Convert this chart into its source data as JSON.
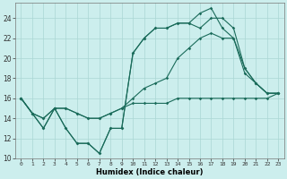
{
  "xlabel": "Humidex (Indice chaleur)",
  "bg_color": "#cceeed",
  "grid_color": "#aad6d4",
  "line_color": "#1a6b5a",
  "xlim": [
    -0.5,
    23.5
  ],
  "ylim": [
    10,
    25.5
  ],
  "yticks": [
    10,
    12,
    14,
    16,
    18,
    20,
    22,
    24
  ],
  "xticks": [
    0,
    1,
    2,
    3,
    4,
    5,
    6,
    7,
    8,
    9,
    10,
    11,
    12,
    13,
    14,
    15,
    16,
    17,
    18,
    19,
    20,
    21,
    22,
    23
  ],
  "series": [
    {
      "x": [
        0,
        1,
        2,
        3,
        4,
        5,
        6,
        7,
        8,
        9,
        10,
        11,
        12,
        13,
        14,
        15,
        16,
        17,
        18,
        19,
        20,
        21,
        22,
        23
      ],
      "y": [
        16,
        14.5,
        13,
        15,
        13,
        11.5,
        11.5,
        10.5,
        13,
        13,
        20.5,
        22,
        23,
        23,
        23.5,
        23.5,
        24.5,
        25,
        23,
        22,
        19,
        17.5,
        16.5,
        16.5
      ]
    },
    {
      "x": [
        0,
        1,
        2,
        3,
        4,
        5,
        6,
        7,
        8,
        9,
        10,
        11,
        12,
        13,
        14,
        15,
        16,
        17,
        18,
        19,
        20,
        21,
        22,
        23
      ],
      "y": [
        16,
        14.5,
        13,
        15,
        13,
        11.5,
        11.5,
        10.5,
        13,
        13,
        20.5,
        22,
        23,
        23,
        23.5,
        23.5,
        23,
        24,
        24,
        23,
        19,
        17.5,
        16.5,
        16.5
      ]
    },
    {
      "x": [
        0,
        1,
        2,
        3,
        4,
        5,
        6,
        7,
        8,
        9,
        10,
        11,
        12,
        13,
        14,
        15,
        16,
        17,
        18,
        19,
        20,
        21,
        22,
        23
      ],
      "y": [
        16,
        14.5,
        14,
        15,
        15,
        14.5,
        14,
        14,
        14.5,
        15,
        15.5,
        15.5,
        15.5,
        15.5,
        16,
        16,
        16,
        16,
        16,
        16,
        16,
        16,
        16,
        16.5
      ]
    },
    {
      "x": [
        0,
        1,
        2,
        3,
        4,
        5,
        6,
        7,
        8,
        9,
        10,
        11,
        12,
        13,
        14,
        15,
        16,
        17,
        18,
        19,
        20,
        21,
        22,
        23
      ],
      "y": [
        16,
        14.5,
        14,
        15,
        15,
        14.5,
        14,
        14,
        14.5,
        15,
        16,
        17,
        17.5,
        18,
        20,
        21,
        22,
        22.5,
        22,
        22,
        18.5,
        17.5,
        16.5,
        16.5
      ]
    }
  ]
}
